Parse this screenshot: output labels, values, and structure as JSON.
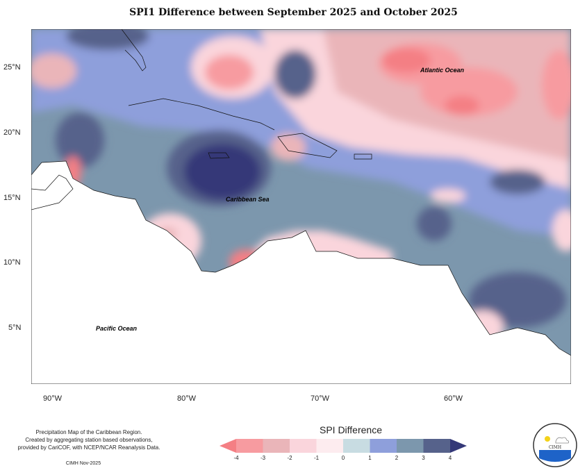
{
  "title": "SPI1 Difference between September 2025 and October 2025",
  "map": {
    "labels": {
      "atlantic": "Atlantic Ocean",
      "caribbean": "Caribbean Sea",
      "pacific": "Pacific Ocean"
    },
    "lat_ticks": [
      "25°N",
      "20°N",
      "15°N",
      "10°N",
      "5°N"
    ],
    "lon_ticks": [
      "90°W",
      "80°W",
      "70°W",
      "60°W"
    ],
    "lon_range": [
      -91.5,
      -51.1
    ],
    "lat_range": [
      1.3,
      28
    ]
  },
  "legend": {
    "title": "SPI Difference",
    "ticks": [
      "-4",
      "-3",
      "-2",
      "-1",
      "0",
      "1",
      "2",
      "3",
      "4"
    ],
    "colors": [
      "#f47f84",
      "#f79ba0",
      "#eab5b9",
      "#fad5dc",
      "#fdecef",
      "#c8dce2",
      "#8e9fdb",
      "#7c97ad",
      "#56628b",
      "#343878"
    ]
  },
  "credit": {
    "lines": [
      "Precipitation Map of the Caribbean Region.",
      "Created by aggregating station based observations,",
      "provided by CariCOF, with NCEP/NCAR Reanalysis Data."
    ],
    "date": "CIMH Nov-2025"
  },
  "logo": {
    "text": "CIMH"
  }
}
